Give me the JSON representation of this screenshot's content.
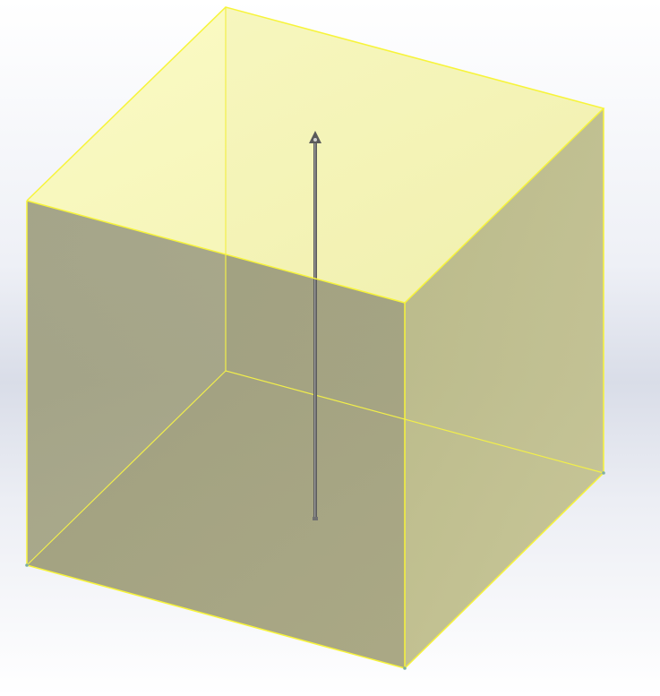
{
  "viewport": {
    "background_top": "#ffffff",
    "background_mid": "#d9dde8"
  },
  "model": {
    "type": "cube",
    "display_mode": "transparent",
    "edge_color": "#f5f23a",
    "top_face_color": "#f9f9b8",
    "left_face_color": "#9c9a78",
    "right_face_color": "#bdbb88",
    "bottom_face_color": "#a7a57e"
  },
  "axis_arrow": {
    "color": "#5a5a5a",
    "tip_icon": "arrow-up-icon"
  }
}
